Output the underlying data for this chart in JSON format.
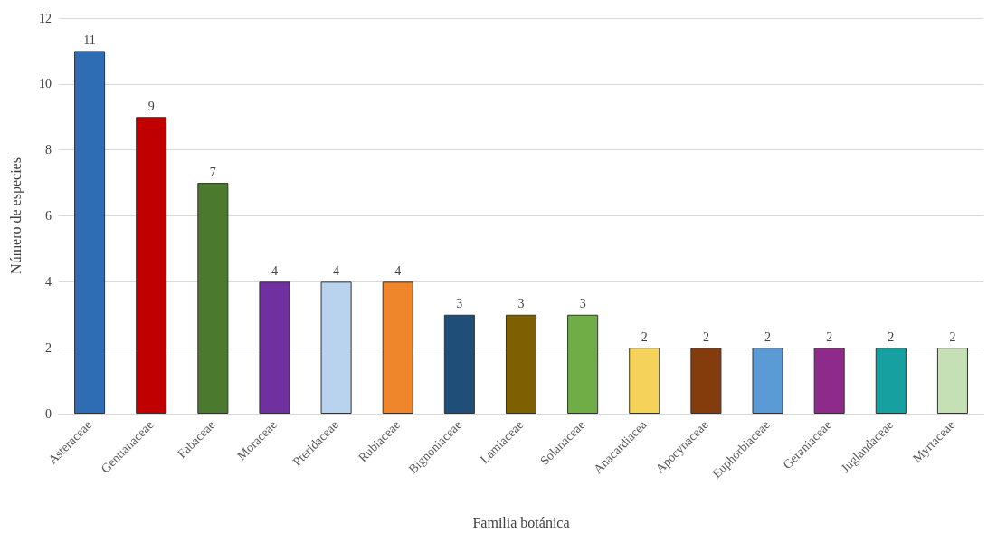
{
  "chart_data": {
    "type": "bar",
    "xlabel": "Familia botánica",
    "ylabel": "Número de especies",
    "categories": [
      "Asteraceae",
      "Gentianaceae",
      "Fabaceae",
      "Moraceae",
      "Pteridaceae",
      "Rubiaceae",
      "Bignoniaceae",
      "Lamiaceae",
      "Solanaceae",
      "Anacardiacea",
      "Apocynaceae",
      "Euphorbiaceae",
      "Geraniaceae",
      "Juglandaceae",
      "Myrtaceae"
    ],
    "values": [
      11,
      9,
      7,
      4,
      4,
      4,
      3,
      3,
      3,
      2,
      2,
      2,
      2,
      2,
      2
    ],
    "colors": [
      "#2e6db4",
      "#c00000",
      "#4b7a2e",
      "#7030a0",
      "#b9d3ee",
      "#f0862c",
      "#1f4e79",
      "#7f6000",
      "#70ad47",
      "#f5d35a",
      "#843c0c",
      "#5b9bd5",
      "#8e2a8a",
      "#17a0a0",
      "#c5e0b4"
    ],
    "ylim": [
      0,
      12
    ],
    "yticks": [
      0,
      2,
      4,
      6,
      8,
      10,
      12
    ],
    "grid": "y",
    "data_labels": true
  }
}
